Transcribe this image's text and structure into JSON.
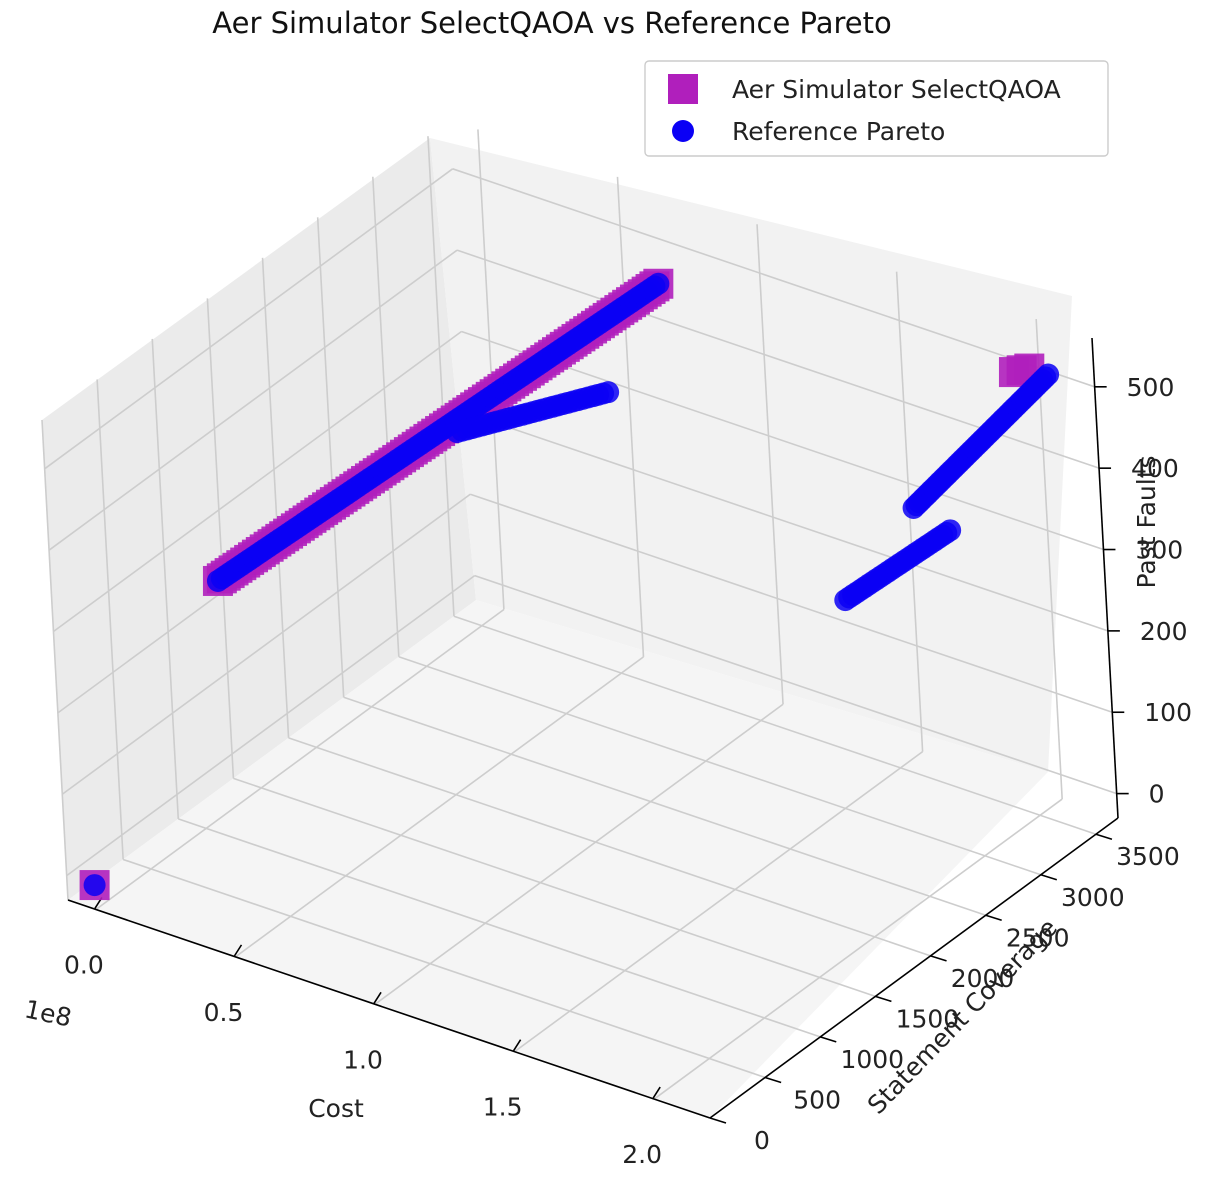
{
  "chart_data": {
    "type": "scatter",
    "title": "Aer Simulator SelectQAOA vs Reference Pareto",
    "xlabel": "Cost",
    "ylabel": "Statement Coverage",
    "zlabel": "Past Faults",
    "x_offset_label": "1e8",
    "xlim": [
      -0.1,
      2.2
    ],
    "ylim": [
      0,
      3700
    ],
    "zlim": [
      -30,
      560
    ],
    "x_ticks": [
      "0.0",
      "0.5",
      "1.0",
      "1.5",
      "2.0"
    ],
    "y_ticks": [
      "0",
      "500",
      "1000",
      "1500",
      "2000",
      "2500",
      "3000",
      "3500"
    ],
    "z_ticks": [
      "0",
      "100",
      "200",
      "300",
      "400",
      "500"
    ],
    "grid": true,
    "legend_position": "top-right",
    "series": [
      {
        "name": "Aer Simulator SelectQAOA",
        "marker": "square",
        "color": "#b01fbc",
        "segments": [
          {
            "x": [
              0.0,
              0.0
            ],
            "y": [
              0,
              0
            ],
            "z": [
              0,
              0
            ]
          },
          {
            "x": [
              0.05,
              0.9
            ],
            "y": [
              1100,
              3050
            ],
            "z": [
              270,
              540
            ]
          },
          {
            "x": [
              2.08,
              2.12
            ],
            "y": [
              3290,
              3330
            ],
            "z": [
              545,
              550
            ]
          }
        ]
      },
      {
        "name": "Reference Pareto",
        "marker": "circle",
        "color": "#0a00f5",
        "segments": [
          {
            "x": [
              0.0,
              0.0
            ],
            "y": [
              0,
              0
            ],
            "z": [
              0,
              0
            ]
          },
          {
            "x": [
              0.05,
              0.9
            ],
            "y": [
              1100,
              3050
            ],
            "z": [
              270,
              540
            ]
          },
          {
            "x": [
              0.45,
              0.8
            ],
            "y": [
              2300,
              2800
            ],
            "z": [
              380,
              420
            ]
          },
          {
            "x": [
              1.75,
              2.0
            ],
            "y": [
              2500,
              2850
            ],
            "z": [
              305,
              385
            ]
          },
          {
            "x": [
              1.85,
              2.2
            ],
            "y": [
              2900,
              3300
            ],
            "z": [
              390,
              555
            ]
          }
        ]
      }
    ]
  }
}
